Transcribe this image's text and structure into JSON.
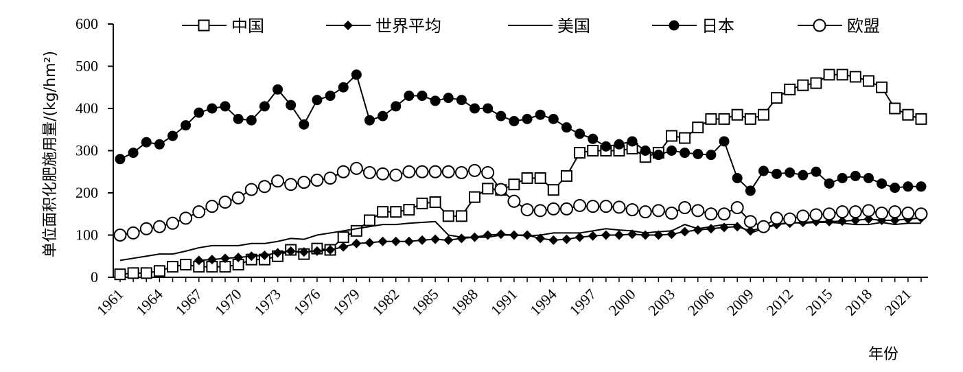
{
  "chart_data": {
    "type": "line",
    "xlabel": "年份",
    "ylabel": "单位面积化肥施用量/(kg/hm²)",
    "xlim": [
      1961,
      2022
    ],
    "ylim": [
      0,
      600
    ],
    "yticks": [
      0,
      100,
      200,
      300,
      400,
      500,
      600
    ],
    "xticks": [
      1961,
      1964,
      1967,
      1970,
      1973,
      1976,
      1979,
      1982,
      1985,
      1988,
      1991,
      1994,
      1997,
      2000,
      2003,
      2006,
      2009,
      2012,
      2015,
      2018,
      2021
    ],
    "legend_position": "top",
    "grid": false,
    "series": [
      {
        "name": "中国",
        "marker": "square-open",
        "color": "#000000",
        "x": [
          1961,
          1962,
          1963,
          1964,
          1965,
          1966,
          1967,
          1968,
          1969,
          1970,
          1971,
          1972,
          1973,
          1974,
          1975,
          1976,
          1977,
          1978,
          1979,
          1980,
          1981,
          1982,
          1983,
          1984,
          1985,
          1986,
          1987,
          1988,
          1989,
          1990,
          1991,
          1992,
          1993,
          1994,
          1995,
          1996,
          1997,
          1998,
          1999,
          2000,
          2001,
          2002,
          2003,
          2004,
          2005,
          2006,
          2007,
          2008,
          2009,
          2010,
          2011,
          2012,
          2013,
          2014,
          2015,
          2016,
          2017,
          2018,
          2019,
          2020,
          2021,
          2022
        ],
        "values": [
          7,
          10,
          10,
          15,
          25,
          30,
          25,
          25,
          25,
          30,
          42,
          42,
          50,
          65,
          55,
          68,
          65,
          95,
          110,
          135,
          155,
          155,
          160,
          175,
          178,
          145,
          145,
          190,
          210,
          207,
          220,
          235,
          235,
          207,
          240,
          295,
          300,
          300,
          300,
          305,
          285,
          295,
          335,
          330,
          355,
          375,
          375,
          385,
          375,
          385,
          425,
          445,
          455,
          460,
          480,
          480,
          475,
          465,
          450,
          400,
          385,
          375
        ]
      },
      {
        "name": "世界平均",
        "marker": "diamond-filled",
        "color": "#000000",
        "x": [
          1967,
          1968,
          1969,
          1970,
          1971,
          1972,
          1973,
          1974,
          1975,
          1976,
          1977,
          1978,
          1979,
          1980,
          1981,
          1982,
          1983,
          1984,
          1985,
          1986,
          1987,
          1988,
          1989,
          1990,
          1991,
          1992,
          1993,
          1994,
          1995,
          1996,
          1997,
          1998,
          1999,
          2000,
          2001,
          2002,
          2003,
          2004,
          2005,
          2006,
          2007,
          2008,
          2009,
          2010,
          2011,
          2012,
          2013,
          2014,
          2015,
          2016,
          2017,
          2018,
          2019,
          2020,
          2021,
          2022
        ],
        "values": [
          40,
          42,
          45,
          47,
          50,
          52,
          58,
          62,
          60,
          62,
          65,
          72,
          80,
          82,
          85,
          85,
          85,
          88,
          90,
          88,
          92,
          95,
          100,
          102,
          100,
          100,
          92,
          88,
          90,
          95,
          98,
          100,
          100,
          102,
          100,
          100,
          102,
          108,
          112,
          115,
          118,
          120,
          110,
          118,
          125,
          128,
          130,
          132,
          132,
          133,
          135,
          138,
          135,
          135,
          138,
          140
        ]
      },
      {
        "name": "美国",
        "marker": "none",
        "color": "#000000",
        "x": [
          1961,
          1962,
          1963,
          1964,
          1965,
          1966,
          1967,
          1968,
          1969,
          1970,
          1971,
          1972,
          1973,
          1974,
          1975,
          1976,
          1977,
          1978,
          1979,
          1980,
          1981,
          1982,
          1983,
          1984,
          1985,
          1986,
          1987,
          1988,
          1989,
          1990,
          1991,
          1992,
          1993,
          1994,
          1995,
          1996,
          1997,
          1998,
          1999,
          2000,
          2001,
          2002,
          2003,
          2004,
          2005,
          2006,
          2007,
          2008,
          2009,
          2010,
          2011,
          2012,
          2013,
          2014,
          2015,
          2016,
          2017,
          2018,
          2019,
          2020,
          2021,
          2022
        ],
        "values": [
          40,
          45,
          50,
          55,
          55,
          62,
          70,
          75,
          75,
          75,
          80,
          80,
          85,
          92,
          90,
          100,
          105,
          110,
          115,
          120,
          125,
          125,
          128,
          130,
          132,
          100,
          95,
          95,
          95,
          100,
          100,
          98,
          100,
          105,
          105,
          105,
          110,
          115,
          112,
          110,
          105,
          108,
          110,
          125,
          115,
          120,
          125,
          125,
          105,
          115,
          125,
          130,
          128,
          130,
          130,
          128,
          125,
          125,
          130,
          125,
          128,
          128
        ]
      },
      {
        "name": "日本",
        "marker": "circle-filled",
        "color": "#000000",
        "x": [
          1961,
          1962,
          1963,
          1964,
          1965,
          1966,
          1967,
          1968,
          1969,
          1970,
          1971,
          1972,
          1973,
          1974,
          1975,
          1976,
          1977,
          1978,
          1979,
          1980,
          1981,
          1982,
          1983,
          1984,
          1985,
          1986,
          1987,
          1988,
          1989,
          1990,
          1991,
          1992,
          1993,
          1994,
          1995,
          1996,
          1997,
          1998,
          1999,
          2000,
          2001,
          2002,
          2003,
          2004,
          2005,
          2006,
          2007,
          2008,
          2009,
          2010,
          2011,
          2012,
          2013,
          2014,
          2015,
          2016,
          2017,
          2018,
          2019,
          2020,
          2021,
          2022
        ],
        "values": [
          280,
          295,
          320,
          315,
          335,
          360,
          390,
          400,
          405,
          375,
          372,
          405,
          445,
          408,
          362,
          420,
          430,
          450,
          480,
          372,
          382,
          405,
          430,
          430,
          418,
          425,
          420,
          400,
          400,
          382,
          370,
          375,
          385,
          375,
          355,
          340,
          328,
          310,
          315,
          322,
          300,
          290,
          300,
          295,
          292,
          290,
          322,
          235,
          205,
          252,
          245,
          248,
          242,
          250,
          222,
          235,
          240,
          235,
          222,
          212,
          215,
          215
        ]
      },
      {
        "name": "欧盟",
        "marker": "circle-open",
        "color": "#000000",
        "x": [
          1961,
          1962,
          1963,
          1964,
          1965,
          1966,
          1967,
          1968,
          1969,
          1970,
          1971,
          1972,
          1973,
          1974,
          1975,
          1976,
          1977,
          1978,
          1979,
          1980,
          1981,
          1982,
          1983,
          1984,
          1985,
          1986,
          1987,
          1988,
          1989,
          1990,
          1991,
          1992,
          1993,
          1994,
          1995,
          1996,
          1997,
          1998,
          1999,
          2000,
          2001,
          2002,
          2003,
          2004,
          2005,
          2006,
          2007,
          2008,
          2009,
          2010,
          2011,
          2012,
          2013,
          2014,
          2015,
          2016,
          2017,
          2018,
          2019,
          2020,
          2021,
          2022
        ],
        "values": [
          100,
          105,
          115,
          120,
          128,
          140,
          155,
          168,
          178,
          188,
          208,
          215,
          228,
          220,
          225,
          230,
          235,
          250,
          258,
          248,
          245,
          242,
          250,
          250,
          250,
          250,
          248,
          253,
          248,
          208,
          180,
          160,
          158,
          162,
          162,
          170,
          168,
          168,
          166,
          160,
          155,
          158,
          152,
          165,
          158,
          150,
          150,
          165,
          132,
          120,
          140,
          138,
          145,
          148,
          150,
          155,
          155,
          158,
          152,
          155,
          152,
          150
        ]
      }
    ]
  }
}
